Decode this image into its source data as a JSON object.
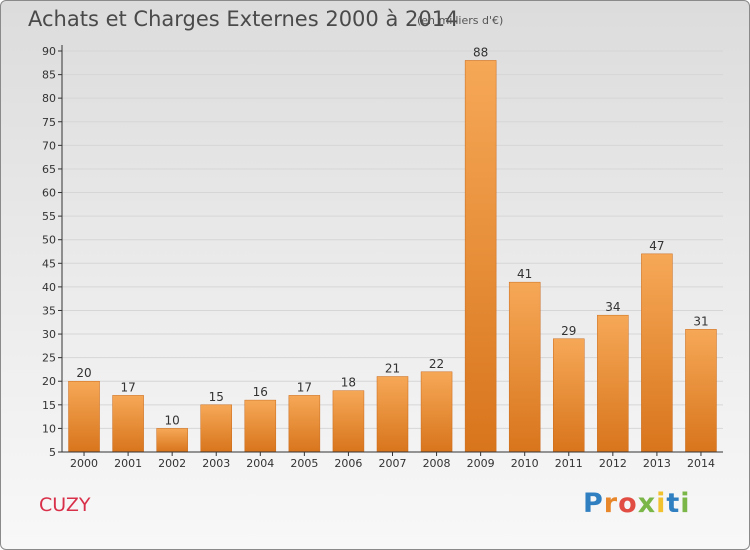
{
  "header": {
    "title": "Achats et Charges Externes 2000 à 2014",
    "unit": "(en milliers d'€)"
  },
  "footer": {
    "commune": "CUZY",
    "logo_text": "Proxiti",
    "logo_colors": [
      "#2f7fc1",
      "#e8862a",
      "#e14d43",
      "#7ab648",
      "#f2c12e",
      "#2f7fc1",
      "#7ab648"
    ]
  },
  "colors": {
    "bar_top": "#f6a857",
    "bar_bottom": "#d8751c",
    "axis": "#333333",
    "grid": "#d6d6d6",
    "commune_text": "#d9304a"
  },
  "chart_data": {
    "type": "bar",
    "title": "Achats et Charges Externes 2000 à 2014",
    "subtitle": "(en milliers d'€)",
    "xlabel": "",
    "ylabel": "",
    "categories": [
      "2000",
      "2001",
      "2002",
      "2003",
      "2004",
      "2005",
      "2006",
      "2007",
      "2008",
      "2009",
      "2010",
      "2011",
      "2012",
      "2013",
      "2014"
    ],
    "values": [
      20,
      17,
      10,
      15,
      16,
      17,
      18,
      21,
      22,
      88,
      41,
      29,
      34,
      47,
      31
    ],
    "ylim": [
      5,
      90
    ],
    "yticks": [
      5,
      10,
      15,
      20,
      25,
      30,
      35,
      40,
      45,
      50,
      55,
      60,
      65,
      70,
      75,
      80,
      85,
      90
    ],
    "grid": true,
    "data_labels": true
  }
}
